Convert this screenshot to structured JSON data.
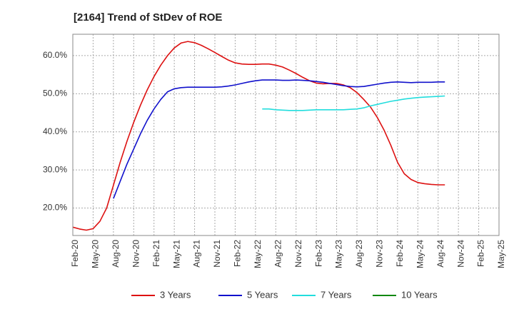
{
  "chart_data": {
    "type": "line",
    "title": "[2164]  Trend of StDev of ROE",
    "xlabel": "",
    "ylabel": "",
    "x_ticks": [
      "Feb-20",
      "May-20",
      "Aug-20",
      "Nov-20",
      "Feb-21",
      "May-21",
      "Aug-21",
      "Nov-21",
      "Feb-22",
      "May-22",
      "Aug-22",
      "Nov-22",
      "Feb-23",
      "May-23",
      "Aug-23",
      "Nov-23",
      "Feb-24",
      "May-24",
      "Aug-24",
      "Nov-24",
      "Feb-25",
      "May-25"
    ],
    "y_ticks": [
      20,
      30,
      40,
      50,
      60
    ],
    "y_tick_labels": [
      "20.0%",
      "30.0%",
      "40.0%",
      "50.0%",
      "60.0%"
    ],
    "ylim": [
      12.8,
      65.6
    ],
    "grid": true,
    "legend_position": "bottom",
    "series": [
      {
        "name": "3 Years",
        "color": "#dd1111",
        "values": [
          15.0,
          14.5,
          14.2,
          14.6,
          16.5,
          20.0,
          26.0,
          32.0,
          37.5,
          42.5,
          47.0,
          51.0,
          54.5,
          57.5,
          60.0,
          62.0,
          63.3,
          63.7,
          63.4,
          62.7,
          61.8,
          60.8,
          59.8,
          58.8,
          58.1,
          57.8,
          57.7,
          57.7,
          57.8,
          57.8,
          57.5,
          57.0,
          56.2,
          55.3,
          54.3,
          53.4,
          52.8,
          52.6,
          52.7,
          52.7,
          52.3,
          51.6,
          50.3,
          48.5,
          46.5,
          43.8,
          40.5,
          36.5,
          32.0,
          29.0,
          27.5,
          26.7,
          26.4,
          26.2,
          26.1,
          26.1
        ]
      },
      {
        "name": "5 Years",
        "color": "#1111cc",
        "values": [
          null,
          null,
          null,
          null,
          null,
          null,
          22.5,
          27.0,
          31.5,
          35.5,
          39.5,
          43.0,
          46.0,
          48.5,
          50.5,
          51.3,
          51.6,
          51.7,
          51.7,
          51.7,
          51.7,
          51.7,
          51.8,
          52.0,
          52.3,
          52.7,
          53.1,
          53.4,
          53.6,
          53.6,
          53.6,
          53.5,
          53.5,
          53.6,
          53.5,
          53.4,
          53.2,
          53.0,
          52.7,
          52.4,
          52.1,
          51.9,
          51.8,
          51.9,
          52.2,
          52.5,
          52.8,
          53.0,
          53.1,
          53.0,
          52.9,
          53.0,
          53.0,
          53.0,
          53.1,
          53.1
        ]
      },
      {
        "name": "7 Years",
        "color": "#22dddd",
        "values": [
          null,
          null,
          null,
          null,
          null,
          null,
          null,
          null,
          null,
          null,
          null,
          null,
          null,
          null,
          null,
          null,
          null,
          null,
          null,
          null,
          null,
          null,
          null,
          null,
          null,
          null,
          null,
          null,
          46.0,
          46.0,
          45.8,
          45.7,
          45.6,
          45.6,
          45.6,
          45.7,
          45.8,
          45.8,
          45.8,
          45.8,
          45.8,
          45.9,
          46.0,
          46.3,
          46.8,
          47.2,
          47.6,
          48.0,
          48.3,
          48.6,
          48.8,
          49.0,
          49.1,
          49.2,
          49.3,
          49.4
        ]
      },
      {
        "name": "10 Years",
        "color": "#118811",
        "values": []
      }
    ]
  }
}
